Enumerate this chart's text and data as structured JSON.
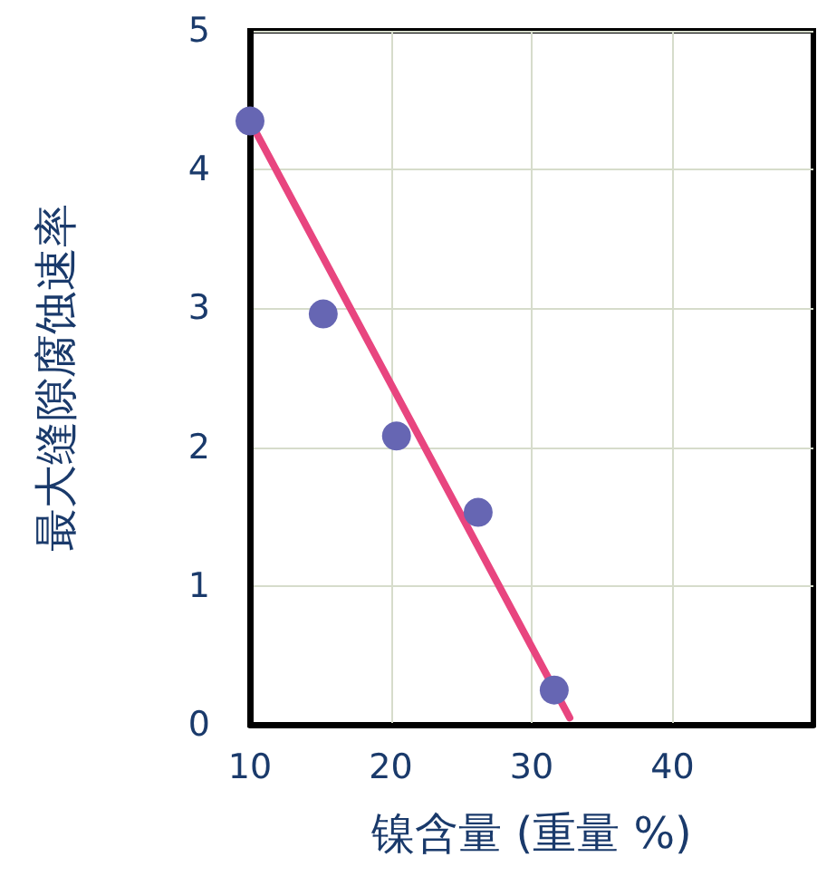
{
  "chart_data": {
    "type": "scatter",
    "xlabel": "镍含量 (重量 %)",
    "ylabel": "最大缝隙腐蚀速率",
    "xlim": [
      10,
      50
    ],
    "xticks": [
      10,
      20,
      30,
      40
    ],
    "ylim": [
      0,
      5
    ],
    "yticks": [
      0,
      1,
      2,
      3,
      4,
      5
    ],
    "grid": true,
    "marker": "circle",
    "series": [
      {
        "type": "scatter",
        "color": "#6666b3",
        "x": [
          10,
          15.2,
          20.4,
          26.2,
          31.6
        ],
        "values": [
          4.35,
          2.96,
          2.08,
          1.53,
          0.25
        ]
      },
      {
        "type": "line",
        "color": "#e8457f",
        "x": [
          10,
          32.7
        ],
        "values": [
          4.35,
          0.05
        ],
        "marker": "none",
        "line_style": "solid"
      }
    ]
  }
}
